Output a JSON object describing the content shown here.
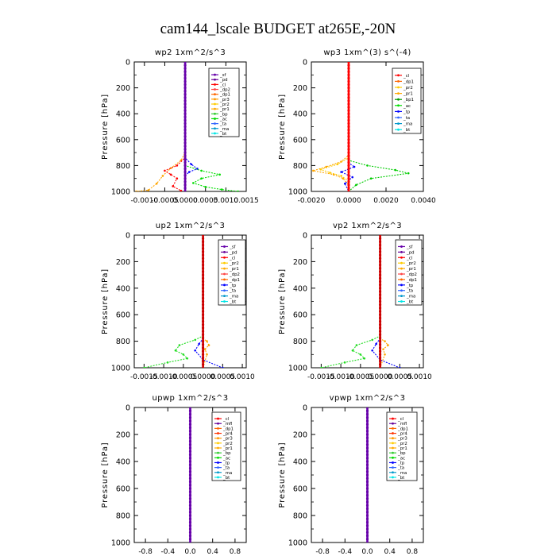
{
  "title": "cam144_lscale  BUDGET at265E,-20N",
  "chart_data": [
    {
      "type": "line",
      "title": "wp2   1xm^2/s^3",
      "ylabel": "Pressure [hPa]",
      "xlim": [
        -0.00125,
        0.0015
      ],
      "ylim": [
        1000,
        0
      ],
      "xticks": [
        "-0.0010",
        "-0.0005",
        "0.0000",
        "0.0005",
        "0.0010",
        "0.0015"
      ],
      "xtick_values": [
        -0.001,
        -0.0005,
        0,
        0.0005,
        0.001,
        0.0015
      ],
      "yticks": [
        0,
        200,
        400,
        600,
        800,
        1000
      ],
      "legend": "top-right",
      "legend_entries": [
        "_sf",
        "_pd",
        "_cl",
        "_dp2",
        "_dp1",
        "_pr3",
        "_pr2",
        "_pr1",
        "_bp",
        "_ac",
        "_ta",
        "_ma",
        "_bt"
      ],
      "series": [
        {
          "name": "_pr3",
          "color": "#ffa500",
          "points": [
            [
              0,
              0
            ],
            [
              0,
              700
            ],
            [
              -0.0001,
              760
            ],
            [
              -0.00035,
              820
            ],
            [
              -0.00055,
              880
            ],
            [
              -0.0007,
              940
            ],
            [
              -0.0009,
              990
            ],
            [
              -0.0012,
              1000
            ]
          ]
        },
        {
          "name": "_dp2",
          "color": "#ff0000",
          "points": [
            [
              0,
              0
            ],
            [
              0,
              740
            ],
            [
              -0.0002,
              800
            ],
            [
              -0.0005,
              840
            ],
            [
              -0.00035,
              870
            ],
            [
              -0.0002,
              900
            ],
            [
              -0.0003,
              960
            ],
            [
              -0.0001,
              995
            ]
          ]
        },
        {
          "name": "_bp",
          "color": "#0000ff",
          "points": [
            [
              0,
              0
            ],
            [
              0,
              740
            ],
            [
              0.00015,
              790
            ],
            [
              0.0003,
              825
            ],
            [
              0.0001,
              850
            ],
            [
              0,
              880
            ],
            [
              0,
              1000
            ]
          ]
        },
        {
          "name": "_ac",
          "color": "#00dd00",
          "points": [
            [
              0,
              0
            ],
            [
              0,
              800
            ],
            [
              0.0004,
              840
            ],
            [
              0.00085,
              870
            ],
            [
              0.0004,
              900
            ],
            [
              0.0002,
              935
            ],
            [
              0.0005,
              965
            ],
            [
              0.0009,
              985
            ],
            [
              0.0013,
              1000
            ]
          ]
        },
        {
          "name": "_bt",
          "color": "#6600aa",
          "points": [
            [
              0,
              0
            ],
            [
              0,
              1000
            ]
          ]
        }
      ]
    },
    {
      "type": "line",
      "title": "wp3   1xm^(3) s^(-4)",
      "ylabel": "Pressure [hPa]",
      "xlim": [
        -0.002,
        0.004
      ],
      "ylim": [
        1000,
        0
      ],
      "xticks": [
        "-0.0020",
        "0.0000",
        "0.0020",
        "0.0040"
      ],
      "xtick_values": [
        -0.002,
        0,
        0.002,
        0.004
      ],
      "yticks": [
        0,
        200,
        400,
        600,
        800,
        1000
      ],
      "legend": "top-right",
      "legend_entries": [
        "_cl",
        "_dp1",
        "_pr2",
        "_pr1",
        "_bp1",
        "_ac",
        "_tp",
        "_ta",
        "_ma",
        "_bt"
      ],
      "series": [
        {
          "name": "_pr1",
          "color": "#ffa500",
          "points": [
            [
              0,
              0
            ],
            [
              0,
              720
            ],
            [
              -0.0004,
              770
            ],
            [
              -0.0012,
              810
            ],
            [
              -0.0019,
              840
            ],
            [
              -0.0008,
              870
            ],
            [
              -0.0003,
              900
            ],
            [
              0,
              950
            ],
            [
              0,
              1000
            ]
          ]
        },
        {
          "name": "_pr2",
          "color": "#ffcc00",
          "points": [
            [
              0,
              0
            ],
            [
              0,
              740
            ],
            [
              -0.0006,
              790
            ],
            [
              -0.0015,
              830
            ],
            [
              -0.001,
              855
            ],
            [
              -0.0004,
              880
            ],
            [
              0,
              920
            ],
            [
              0,
              1000
            ]
          ]
        },
        {
          "name": "_ac",
          "color": "#00cc00",
          "points": [
            [
              0,
              0
            ],
            [
              0,
              760
            ],
            [
              0.001,
              800
            ],
            [
              0.0025,
              835
            ],
            [
              0.0032,
              860
            ],
            [
              0.0012,
              900
            ],
            [
              0.0004,
              950
            ],
            [
              0,
              1000
            ]
          ]
        },
        {
          "name": "_tp",
          "color": "#0000ff",
          "points": [
            [
              0,
              0
            ],
            [
              0,
              780
            ],
            [
              0.0003,
              810
            ],
            [
              -0.0004,
              850
            ],
            [
              0.0002,
              890
            ],
            [
              -0.0002,
              940
            ],
            [
              0,
              1000
            ]
          ]
        },
        {
          "name": "_cl",
          "color": "#ff0000",
          "points": [
            [
              0,
              0
            ],
            [
              0,
              1000
            ]
          ]
        }
      ]
    },
    {
      "type": "line",
      "title": "up2   1xm^2/s^3",
      "ylabel": "Pressure [hPa]",
      "xlim": [
        -0.00175,
        0.0011
      ],
      "ylim": [
        1000,
        0
      ],
      "xticks": [
        "-0.0015",
        "-0.0010",
        "-0.0005",
        "0.0000",
        "0.0005",
        "0.0010"
      ],
      "xtick_values": [
        -0.0015,
        -0.001,
        -0.0005,
        0,
        0.0005,
        0.001
      ],
      "yticks": [
        0,
        200,
        400,
        600,
        800,
        1000
      ],
      "legend": "top-right",
      "legend_entries": [
        "_sf",
        "_pd",
        "_cl",
        "_pr2",
        "_pr1",
        "_dp2",
        "_dp1",
        "_tp",
        "_ta",
        "_ma",
        "_bt"
      ],
      "series": [
        {
          "name": "_dp1",
          "color": "#22dd22",
          "points": [
            [
              0,
              0
            ],
            [
              0,
              760
            ],
            [
              -0.0002,
              790
            ],
            [
              -0.0006,
              830
            ],
            [
              -0.0007,
              870
            ],
            [
              -0.0005,
              900
            ],
            [
              -0.0004,
              930
            ],
            [
              -0.0009,
              960
            ],
            [
              -0.0015,
              1000
            ]
          ]
        },
        {
          "name": "_pr2",
          "color": "#ffa500",
          "points": [
            [
              0,
              0
            ],
            [
              0,
              780
            ],
            [
              0.0001,
              800
            ],
            [
              0.00015,
              830
            ],
            [
              5e-05,
              860
            ],
            [
              0.0001,
              900
            ],
            [
              0,
              1000
            ]
          ]
        },
        {
          "name": "_tp",
          "color": "#0000ff",
          "points": [
            [
              0,
              0
            ],
            [
              0,
              780
            ],
            [
              -0.0001,
              820
            ],
            [
              -0.0002,
              870
            ],
            [
              0,
              940
            ],
            [
              0.0005,
              1000
            ]
          ]
        },
        {
          "name": "_cl",
          "color": "#cc0000",
          "points": [
            [
              0,
              0
            ],
            [
              0,
              1000
            ]
          ]
        }
      ]
    },
    {
      "type": "line",
      "title": "vp2   1xm^2/s^3",
      "ylabel": "Pressure [hPa]",
      "xlim": [
        -0.00175,
        0.0011
      ],
      "ylim": [
        1000,
        0
      ],
      "xticks": [
        "-0.0015",
        "-0.0010",
        "-0.0005",
        "0.0000",
        "0.0005",
        "0.0010"
      ],
      "xtick_values": [
        -0.0015,
        -0.001,
        -0.0005,
        0,
        0.0005,
        0.001
      ],
      "yticks": [
        0,
        200,
        400,
        600,
        800,
        1000
      ],
      "legend": "top-right",
      "legend_entries": [
        "_sf",
        "_pd",
        "_cl",
        "_pr2",
        "_pr1",
        "_dp2",
        "_dp1",
        "_tp",
        "_ta",
        "_ma",
        "_bt"
      ],
      "series": [
        {
          "name": "_dp1",
          "color": "#22dd22",
          "points": [
            [
              0,
              0
            ],
            [
              0,
              760
            ],
            [
              -0.0002,
              790
            ],
            [
              -0.0006,
              830
            ],
            [
              -0.0007,
              870
            ],
            [
              -0.0005,
              900
            ],
            [
              -0.0004,
              930
            ],
            [
              -0.0009,
              960
            ],
            [
              -0.0015,
              1000
            ]
          ]
        },
        {
          "name": "_pr2",
          "color": "#ffa500",
          "points": [
            [
              0,
              0
            ],
            [
              0,
              780
            ],
            [
              0.00012,
              800
            ],
            [
              0.0002,
              830
            ],
            [
              8e-05,
              860
            ],
            [
              0.00012,
              900
            ],
            [
              0,
              1000
            ]
          ]
        },
        {
          "name": "_tp",
          "color": "#0000ff",
          "points": [
            [
              0,
              0
            ],
            [
              0,
              780
            ],
            [
              -0.0001,
              820
            ],
            [
              -0.0002,
              870
            ],
            [
              0,
              940
            ],
            [
              0.0005,
              1000
            ]
          ]
        },
        {
          "name": "_cl",
          "color": "#cc0000",
          "points": [
            [
              0,
              0
            ],
            [
              0,
              1000
            ]
          ]
        }
      ]
    },
    {
      "type": "line",
      "title": "upwp   1xm^2/s^3",
      "ylabel": "Pressure [hPa]",
      "xlim": [
        -1,
        1
      ],
      "ylim": [
        1000,
        0
      ],
      "xticks": [
        "-0.8",
        "-0.4",
        "0.0",
        "0.4",
        "0.8"
      ],
      "xtick_values": [
        -0.8,
        -0.4,
        0,
        0.4,
        0.8
      ],
      "yticks": [
        0,
        200,
        400,
        600,
        800,
        1000
      ],
      "legend": "top-right",
      "legend_entries": [
        "_cl",
        "_mfl",
        "_dp1",
        "_pr4",
        "_pr3",
        "_pr2",
        "_pr1",
        "_bp",
        "_ac",
        "_tp",
        "_ta",
        "_ma",
        "_bt"
      ],
      "series": [
        {
          "name": "_cl",
          "color": "#6600aa",
          "points": [
            [
              0,
              0
            ],
            [
              0,
              1000
            ]
          ]
        }
      ]
    },
    {
      "type": "line",
      "title": "vpwp   1xm^2/s^3",
      "ylabel": "Pressure [hPa]",
      "xlim": [
        -1,
        1
      ],
      "ylim": [
        1000,
        0
      ],
      "xticks": [
        "-0.8",
        "-0.4",
        "0.0",
        "0.4",
        "0.8"
      ],
      "xtick_values": [
        -0.8,
        -0.4,
        0,
        0.4,
        0.8
      ],
      "yticks": [
        0,
        200,
        400,
        600,
        800,
        1000
      ],
      "legend": "top-right",
      "legend_entries": [
        "_cl",
        "_mfl",
        "_dp1",
        "_pr4",
        "_pr3",
        "_pr2",
        "_pr1",
        "_bp",
        "_ac",
        "_tp",
        "_ta",
        "_ma",
        "_bt"
      ],
      "series": [
        {
          "name": "_cl",
          "color": "#6600aa",
          "points": [
            [
              0,
              0
            ],
            [
              0,
              1000
            ]
          ]
        }
      ]
    }
  ],
  "legend_colors": {
    "_sf": "#6600aa",
    "_pd": "#660099",
    "_cl": "#ff0000",
    "_dp2": "#ff4444",
    "_dp1": "#ff6600",
    "_pr3": "#ff9900",
    "_pr2": "#ffcc00",
    "_pr1": "#ffaa00",
    "_bp": "#33cc33",
    "_ac": "#00dd00",
    "_tp": "#0000ff",
    "_ta": "#3366ff",
    "_ma": "#0099cc",
    "_bt": "#00e5e5",
    "_bp1": "#009900",
    "_mfl": "#660099",
    "_pr4": "#ff3300"
  }
}
